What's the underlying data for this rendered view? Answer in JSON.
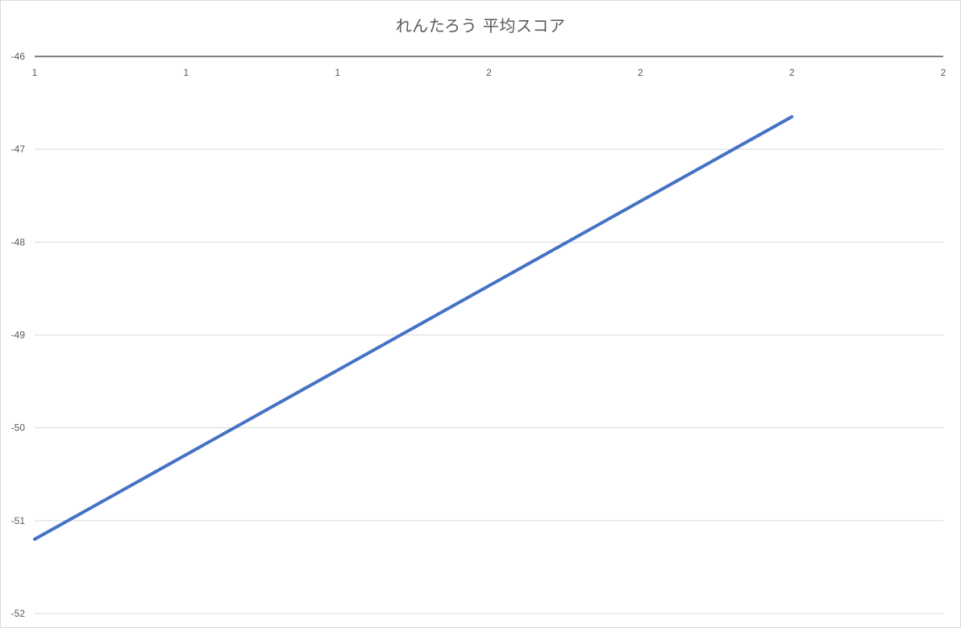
{
  "chart_data": {
    "type": "line",
    "title": "れんたろう 平均スコア",
    "xlabel": "",
    "ylabel": "",
    "x_tick_labels": [
      "1",
      "1",
      "1",
      "2",
      "2",
      "2",
      "2"
    ],
    "y_tick_labels": [
      "-46",
      "-47",
      "-48",
      "-49",
      "-50",
      "-51",
      "-52"
    ],
    "ylim": [
      -52,
      -46
    ],
    "x": [
      1,
      2
    ],
    "series": [
      {
        "values": [
          -51.2,
          -46.65
        ],
        "color": "#4472c4"
      }
    ],
    "grid": true,
    "legend": "none"
  }
}
